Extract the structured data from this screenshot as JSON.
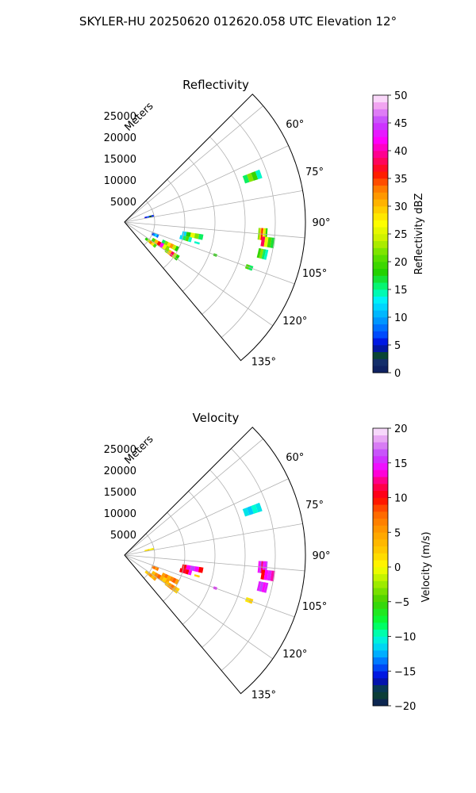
{
  "figure": {
    "suptitle": "SKYLER-HU  20250620  012620.058 UTC Elevation 12°"
  },
  "chart_data": [
    {
      "type": "heatmap",
      "title": "Reflectivity",
      "radial_label": "Meters",
      "radial_ticks": [
        5000,
        10000,
        15000,
        20000,
        25000
      ],
      "radial_tick_labels": [
        "5000",
        "10000",
        "15000",
        "20000",
        "25000"
      ],
      "rlim": [
        0,
        30000
      ],
      "theta_ticks": [
        60,
        75,
        90,
        105,
        120,
        135
      ],
      "theta_tick_labels": [
        "60°",
        "75°",
        "90°",
        "105°",
        "120°",
        "135°"
      ],
      "theta_range": [
        45,
        140
      ],
      "grid": true,
      "colorbar": {
        "label": "Reflectivity dBZ",
        "range": [
          0,
          50
        ],
        "ticks": [
          0,
          5,
          10,
          15,
          20,
          25,
          30,
          35,
          40,
          45,
          50
        ],
        "tick_labels": [
          "0",
          "5",
          "10",
          "15",
          "20",
          "25",
          "30",
          "35",
          "40",
          "45",
          "50"
        ],
        "colormap_stops": [
          [
            0,
            "#0d1b5e"
          ],
          [
            2,
            "#14306b"
          ],
          [
            3,
            "#0b4a2a"
          ],
          [
            5,
            "#0000d8"
          ],
          [
            7,
            "#0050ff"
          ],
          [
            10,
            "#00a8ff"
          ],
          [
            13,
            "#00f0ff"
          ],
          [
            15,
            "#00ff90"
          ],
          [
            18,
            "#20d000"
          ],
          [
            21,
            "#60e000"
          ],
          [
            24,
            "#c8f000"
          ],
          [
            27,
            "#ffff00"
          ],
          [
            30,
            "#ffc000"
          ],
          [
            33,
            "#ff8000"
          ],
          [
            36,
            "#ff1000"
          ],
          [
            39,
            "#ff0080"
          ],
          [
            42,
            "#ff00ff"
          ],
          [
            45,
            "#c040ff"
          ],
          [
            48,
            "#f0a0f0"
          ],
          [
            50,
            "#fff0ff"
          ]
        ]
      },
      "cells": [
        {
          "az": 70.5,
          "r": 22500,
          "dr": 3000,
          "daz": 3.5,
          "values": [
            16,
            22,
            19,
            14
          ]
        },
        {
          "az": 95,
          "r": 23000,
          "dr": 1500,
          "daz": 5,
          "values": [
            22,
            30,
            36,
            28,
            24,
            18
          ]
        },
        {
          "az": 98,
          "r": 24000,
          "dr": 2200,
          "daz": 4,
          "values": [
            38,
            26,
            20,
            17
          ]
        },
        {
          "az": 103,
          "r": 23500,
          "dr": 1600,
          "daz": 4,
          "values": [
            19,
            22,
            16,
            14
          ]
        },
        {
          "az": 101,
          "r": 11500,
          "dr": 3500,
          "daz": 4,
          "values": [
            12,
            18,
            26,
            22,
            16
          ]
        },
        {
          "az": 105,
          "r": 10500,
          "dr": 2000,
          "daz": 4,
          "values": [
            12,
            16,
            20,
            14
          ]
        },
        {
          "az": 117,
          "r": 8500,
          "dr": 3000,
          "daz": 5,
          "values": [
            16,
            22,
            28,
            32,
            24,
            18
          ]
        },
        {
          "az": 122,
          "r": 7000,
          "dr": 3200,
          "daz": 6,
          "values": [
            20,
            30,
            36,
            42,
            26,
            22
          ]
        },
        {
          "az": 128,
          "r": 5500,
          "dr": 2200,
          "daz": 5,
          "values": [
            18,
            24,
            33,
            28,
            20
          ]
        },
        {
          "az": 124,
          "r": 9500,
          "dr": 2500,
          "daz": 5,
          "values": [
            22,
            30,
            38,
            24,
            18
          ]
        },
        {
          "az": 113,
          "r": 5500,
          "dr": 1200,
          "daz": 5,
          "values": [
            6,
            9,
            12,
            8
          ]
        },
        {
          "az": 78,
          "r": 4200,
          "dr": 1600,
          "daz": 4,
          "values": [
            5,
            7,
            3,
            6
          ]
        },
        {
          "az": 106,
          "r": 12500,
          "dr": 900,
          "daz": 1.5,
          "values": [
            14
          ]
        },
        {
          "az": 110,
          "r": 16000,
          "dr": 600,
          "daz": 1.5,
          "values": [
            18
          ]
        },
        {
          "az": 110,
          "r": 22000,
          "dr": 1200,
          "daz": 2,
          "values": [
            20,
            16
          ]
        }
      ]
    },
    {
      "type": "heatmap",
      "title": "Velocity",
      "radial_label": "Meters",
      "radial_ticks": [
        5000,
        10000,
        15000,
        20000,
        25000
      ],
      "radial_tick_labels": [
        "5000",
        "10000",
        "15000",
        "20000",
        "25000"
      ],
      "rlim": [
        0,
        30000
      ],
      "theta_ticks": [
        60,
        75,
        90,
        105,
        120,
        135
      ],
      "theta_tick_labels": [
        "60°",
        "75°",
        "90°",
        "105°",
        "120°",
        "135°"
      ],
      "theta_range": [
        45,
        140
      ],
      "grid": true,
      "colorbar": {
        "label": "Velocity (m/s)",
        "range": [
          -20,
          20
        ],
        "ticks": [
          -20,
          -15,
          -10,
          -5,
          0,
          5,
          10,
          15,
          20
        ],
        "tick_labels": [
          "−20",
          "−15",
          "−10",
          "−5",
          "0",
          "5",
          "10",
          "15",
          "20"
        ],
        "colormap_stops": [
          [
            -20,
            "#0d1b5e"
          ],
          [
            -18,
            "#0b4a2a"
          ],
          [
            -16,
            "#0000d8"
          ],
          [
            -14,
            "#0060ff"
          ],
          [
            -12,
            "#00c8ff"
          ],
          [
            -10,
            "#00ffd0"
          ],
          [
            -8,
            "#00ff40"
          ],
          [
            -5,
            "#40d000"
          ],
          [
            -2,
            "#b0f000"
          ],
          [
            0,
            "#ffff00"
          ],
          [
            2,
            "#ffd000"
          ],
          [
            5,
            "#ffa000"
          ],
          [
            8,
            "#ff6000"
          ],
          [
            10,
            "#ff0000"
          ],
          [
            12,
            "#ff0060"
          ],
          [
            14,
            "#ff00ff"
          ],
          [
            16,
            "#c040ff"
          ],
          [
            18,
            "#e090f0"
          ],
          [
            20,
            "#fff0ff"
          ]
        ]
      },
      "cells": [
        {
          "az": 70.5,
          "r": 22500,
          "dr": 3000,
          "daz": 3.5,
          "values": [
            -11,
            -12,
            -10,
            -11
          ]
        },
        {
          "az": 95,
          "r": 23000,
          "dr": 1500,
          "daz": 5,
          "values": [
            14,
            16,
            12,
            15,
            14,
            16
          ]
        },
        {
          "az": 98,
          "r": 24000,
          "dr": 2200,
          "daz": 4,
          "values": [
            10,
            14,
            15,
            13
          ]
        },
        {
          "az": 103,
          "r": 23500,
          "dr": 1600,
          "daz": 4,
          "values": [
            15,
            16,
            14,
            15
          ]
        },
        {
          "az": 101,
          "r": 11500,
          "dr": 3500,
          "daz": 4,
          "values": [
            10,
            14,
            16,
            14,
            10
          ]
        },
        {
          "az": 105,
          "r": 10500,
          "dr": 2000,
          "daz": 4,
          "values": [
            10,
            11,
            10,
            14
          ]
        },
        {
          "az": 117,
          "r": 8500,
          "dr": 3000,
          "daz": 5,
          "values": [
            5,
            7,
            4,
            6,
            8,
            5
          ]
        },
        {
          "az": 122,
          "r": 7000,
          "dr": 3200,
          "daz": 6,
          "values": [
            3,
            6,
            8,
            4,
            2,
            5
          ]
        },
        {
          "az": 128,
          "r": 5500,
          "dr": 2200,
          "daz": 5,
          "values": [
            2,
            4,
            6,
            3,
            5
          ]
        },
        {
          "az": 124,
          "r": 9500,
          "dr": 2500,
          "daz": 5,
          "values": [
            3,
            5,
            7,
            4,
            2
          ]
        },
        {
          "az": 113,
          "r": 5500,
          "dr": 1200,
          "daz": 5,
          "values": [
            6,
            8,
            5,
            7
          ]
        },
        {
          "az": 78,
          "r": 4200,
          "dr": 1600,
          "daz": 4,
          "values": [
            1,
            2,
            0,
            1
          ]
        },
        {
          "az": 106,
          "r": 12500,
          "dr": 900,
          "daz": 1.5,
          "values": [
            2
          ]
        },
        {
          "az": 110,
          "r": 16000,
          "dr": 600,
          "daz": 1.5,
          "values": [
            15
          ]
        },
        {
          "az": 110,
          "r": 22000,
          "dr": 1200,
          "daz": 2,
          "values": [
            1,
            2
          ]
        }
      ]
    }
  ]
}
